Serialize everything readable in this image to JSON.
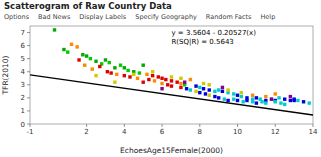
{
  "chart_data": {
    "type": "scatter",
    "title": "Scatterogram of Raw Country Data",
    "menu_items": [
      "Options",
      "Bad News",
      "Display Labels",
      "Specify Geography",
      "Random Facts",
      "Help"
    ],
    "annotations": [
      "y = 3.5604 - 0.20527(x)",
      "R(SQ|R) = 0.5643"
    ],
    "xlabel": "EchoesAge15Female(2000)",
    "ylabel": "TFR(2010)",
    "xlim": [
      -1.0,
      14.0
    ],
    "ylim": [
      0.0,
      7.5
    ],
    "xticks": [
      -1,
      2,
      4,
      6,
      8,
      10,
      12,
      14
    ],
    "yticks": [
      0,
      1,
      2,
      3,
      4,
      5,
      6,
      7
    ],
    "grid": false,
    "series": [
      {
        "type": "scatter",
        "marker": "square",
        "x": [
          0.3,
          1.2,
          1.5,
          0.8,
          1.0,
          1.8,
          2.0,
          2.2,
          1.6,
          2.5,
          2.8,
          1.9,
          3.0,
          3.2,
          2.7,
          3.5,
          2.3,
          3.1,
          3.8,
          4.0,
          3.3,
          4.2,
          3.6,
          4.5,
          4.0,
          4.8,
          5.0,
          4.3,
          5.2,
          5.5,
          4.7,
          5.8,
          5.3,
          6.0,
          5.6,
          6.2,
          5.0,
          6.5,
          6.0,
          6.8,
          6.3,
          7.0,
          6.5,
          7.2,
          7.5,
          7.0,
          7.8,
          7.3,
          8.0,
          7.5,
          8.2,
          8.5,
          7.8,
          8.8,
          8.0,
          9.0,
          8.3,
          9.2,
          8.5,
          9.5,
          8.8,
          9.8,
          9.0,
          10.0,
          9.3,
          10.2,
          9.5,
          10.5,
          9.8,
          10.8,
          10.0,
          11.0,
          10.3,
          11.2,
          10.5,
          11.5,
          10.8,
          11.8,
          11.0,
          12.0,
          11.3,
          12.2,
          12.5,
          11.5,
          12.8,
          12.0,
          13.0,
          12.3,
          13.2,
          13.5,
          12.5,
          13.8,
          13.0,
          6.5,
          7.2,
          8.2,
          9.2,
          10.2,
          5.5,
          4.5,
          6.0,
          7.0,
          3.5,
          2.5,
          8.5,
          9.5,
          10.8,
          11.5,
          12.0,
          11.8,
          12.8
        ],
        "values": [
          7.2,
          6.1,
          5.9,
          5.7,
          5.5,
          5.3,
          5.2,
          5.0,
          4.9,
          4.8,
          4.6,
          4.5,
          4.9,
          4.7,
          4.4,
          4.3,
          4.2,
          4.0,
          4.5,
          4.3,
          3.9,
          4.1,
          3.8,
          4.0,
          3.7,
          3.9,
          4.5,
          3.6,
          3.8,
          3.7,
          3.5,
          3.6,
          3.4,
          3.5,
          3.3,
          3.4,
          3.2,
          3.3,
          3.1,
          3.2,
          3.0,
          3.1,
          2.9,
          3.0,
          3.4,
          2.8,
          2.9,
          2.7,
          2.8,
          2.6,
          2.7,
          2.6,
          2.5,
          2.5,
          2.4,
          2.6,
          2.3,
          2.5,
          2.2,
          2.4,
          2.1,
          2.3,
          2.0,
          2.2,
          1.9,
          2.1,
          1.8,
          2.0,
          1.9,
          1.9,
          1.8,
          2.0,
          1.7,
          1.9,
          1.8,
          1.8,
          1.7,
          1.9,
          1.6,
          1.8,
          1.7,
          2.0,
          1.9,
          1.6,
          1.8,
          1.7,
          1.9,
          1.6,
          1.8,
          1.7,
          1.5,
          1.6,
          1.8,
          3.6,
          3.2,
          3.1,
          2.8,
          2.4,
          4.0,
          3.8,
          2.7,
          3.5,
          3.2,
          3.7,
          3.0,
          2.6,
          2.2,
          2.1,
          2.3,
          1.9,
          2.1
        ],
        "colors": [
          "#00aa00",
          "#ff8800",
          "#ff8800",
          "#00aa00",
          "#00cc00",
          "#00aa00",
          "#00aa00",
          "#00cc00",
          "#dd0000",
          "#00aa00",
          "#00cc00",
          "#ff8800",
          "#00aa00",
          "#00cc00",
          "#dd0000",
          "#00aa00",
          "#ff8800",
          "#dd0000",
          "#00cc00",
          "#00aa00",
          "#dd0000",
          "#00cc00",
          "#ff8800",
          "#00aa00",
          "#dd0000",
          "#00cc00",
          "#00aa00",
          "#dd0000",
          "#ff8800",
          "#dd0000",
          "#ff8800",
          "#dd0000",
          "#dd0000",
          "#dd0000",
          "#ff8800",
          "#dd0000",
          "#dd0000",
          "#dd0000",
          "#ff8800",
          "#dd0000",
          "#dd0000",
          "#ff8800",
          "#dd0000",
          "#00cc00",
          "#ff8800",
          "#dd0000",
          "#0000dd",
          "#0000dd",
          "#00cccc",
          "#00cccc",
          "#0000dd",
          "#0000dd",
          "#cccc00",
          "#00cccc",
          "#0000dd",
          "#00cccc",
          "#0000dd",
          "#0000dd",
          "#cccc00",
          "#00cccc",
          "#0000dd",
          "#00cccc",
          "#0000dd",
          "#0000dd",
          "#00cccc",
          "#00cccc",
          "#0000dd",
          "#0000dd",
          "#00cccc",
          "#00cccc",
          "#0000dd",
          "#0000dd",
          "#00cccc",
          "#00cccc",
          "#0000dd",
          "#0000dd",
          "#00cccc",
          "#00cccc",
          "#0000dd",
          "#0000dd",
          "#00cccc",
          "#00cccc",
          "#0000dd",
          "#00cccc",
          "#0000dd",
          "#00cccc",
          "#0000dd",
          "#00cccc",
          "#00cccc",
          "#0000dd",
          "#00cccc",
          "#00cccc",
          "#0000dd",
          "#cccc00",
          "#880088",
          "#cccc00",
          "#880088",
          "#cccc00",
          "#cccc00",
          "#cccc00",
          "#880088",
          "#cccc00",
          "#cccc00",
          "#cccc00",
          "#cccc00",
          "#cccc00",
          "#ff8800",
          "#ff8800",
          "#ff8800",
          "#880088",
          "#880088"
        ]
      },
      {
        "type": "line",
        "color": "#000000",
        "x": [
          -1.0,
          14.0
        ],
        "values": [
          3.76567,
          0.68662
        ]
      }
    ]
  }
}
